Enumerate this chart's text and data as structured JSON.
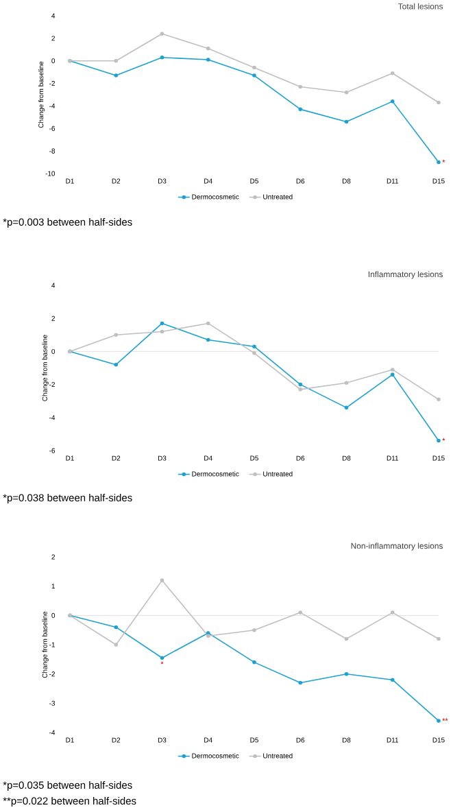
{
  "chart_data": [
    {
      "type": "line",
      "title": "Total lesions",
      "ylabel": "Change from baseline",
      "categories": [
        "D1",
        "D2",
        "D3",
        "D4",
        "D5",
        "D6",
        "D8",
        "D11",
        "D15"
      ],
      "ylim": [
        -10,
        4
      ],
      "yticks": [
        -10,
        -8,
        -6,
        -4,
        -2,
        0,
        2,
        4
      ],
      "series": [
        {
          "name": "Dermocosmetic",
          "color": "#1ba1d4",
          "values": [
            0,
            -1.3,
            0.3,
            0.1,
            -1.3,
            -4.3,
            -5.4,
            -3.6,
            -9.0
          ]
        },
        {
          "name": "Untreated",
          "color": "#bfbfbf",
          "values": [
            0,
            0,
            2.4,
            1.1,
            -0.6,
            -2.3,
            -2.8,
            -1.1,
            -3.7
          ]
        }
      ],
      "marker": "circle",
      "legend": "bottom",
      "annotations": [
        {
          "text": "*",
          "x": "D15",
          "y": -9.0
        },
        "*p=0.003 between half-sides"
      ]
    },
    {
      "type": "line",
      "title": "Inflammatory lesions",
      "ylabel": "Change from baseline",
      "categories": [
        "D1",
        "D2",
        "D3",
        "D4",
        "D5",
        "D6",
        "D8",
        "D11",
        "D15"
      ],
      "ylim": [
        -6,
        4
      ],
      "yticks": [
        -6,
        -4,
        -2,
        0,
        2,
        4
      ],
      "series": [
        {
          "name": "Dermocosmetic",
          "color": "#1ba1d4",
          "values": [
            0,
            -0.8,
            1.7,
            0.7,
            0.3,
            -2.0,
            -3.4,
            -1.4,
            -5.4
          ]
        },
        {
          "name": "Untreated",
          "color": "#bfbfbf",
          "values": [
            0,
            1.0,
            1.2,
            1.7,
            -0.1,
            -2.3,
            -1.9,
            -1.1,
            -2.9
          ]
        }
      ],
      "ref_lines": [
        {
          "axis": "y",
          "value": 0,
          "color": "#d9d9d9"
        }
      ],
      "marker": "circle",
      "legend": "bottom",
      "annotations": [
        {
          "text": "*",
          "x": "D15",
          "y": -5.4
        },
        "*p=0.038 between half-sides"
      ]
    },
    {
      "type": "line",
      "title": "Non-inflammatory lesions",
      "ylabel": "Change from baseline",
      "categories": [
        "D1",
        "D2",
        "D3",
        "D4",
        "D5",
        "D6",
        "D8",
        "D11",
        "D15"
      ],
      "ylim": [
        -4,
        2
      ],
      "yticks": [
        -4,
        -3,
        -2,
        -1,
        0,
        1,
        2
      ],
      "series": [
        {
          "name": "Dermocosmetic",
          "color": "#1ba1d4",
          "values": [
            0,
            -0.4,
            -1.45,
            -0.6,
            -1.6,
            -2.3,
            -2.0,
            -2.2,
            -3.6
          ]
        },
        {
          "name": "Untreated",
          "color": "#bfbfbf",
          "values": [
            0,
            -1.0,
            1.2,
            -0.7,
            -0.5,
            0.1,
            -0.8,
            0.1,
            -0.8
          ]
        }
      ],
      "ref_lines": [
        {
          "axis": "y",
          "value": 0,
          "color": "#d9d9d9"
        }
      ],
      "marker": "circle",
      "legend": "bottom",
      "annotations": [
        {
          "text": "*",
          "x": "D3",
          "y": -1.45
        },
        {
          "text": "**",
          "x": "D15",
          "y": -3.6
        },
        "*p=0.035 between half-sides",
        "**p=0.022 between half-sides"
      ]
    }
  ]
}
